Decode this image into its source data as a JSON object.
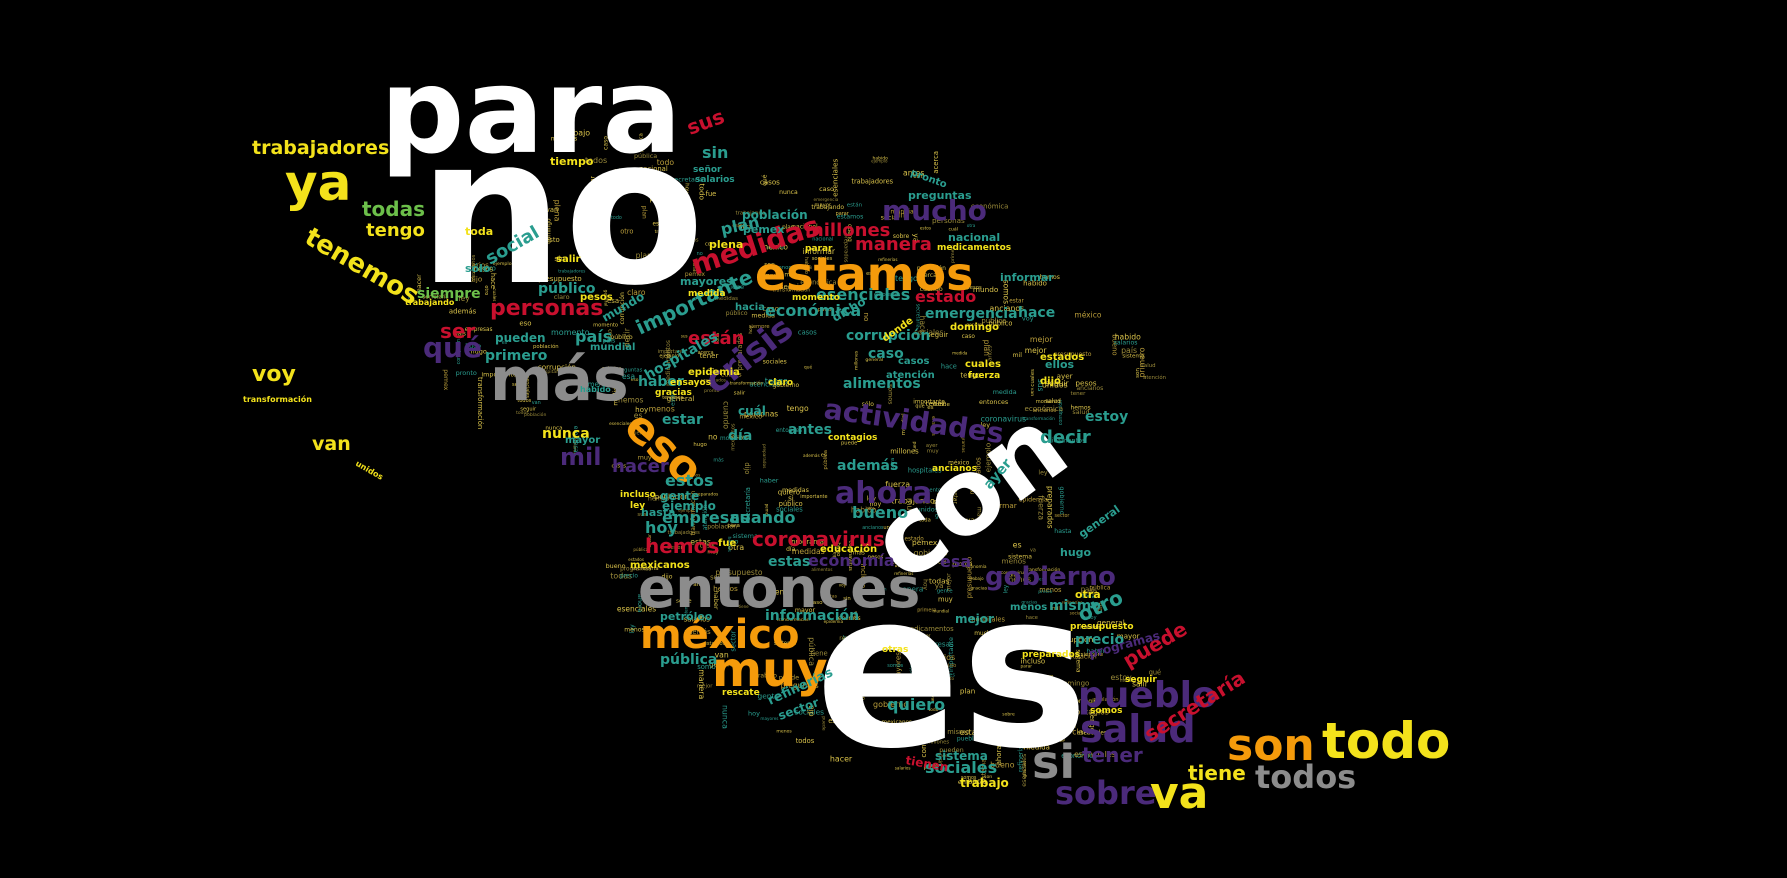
{
  "palette": {
    "background": "#000000",
    "white": "#ffffff",
    "orange": "#f59b0b",
    "yellow": "#f3e21b",
    "gray": "#8c8c8c",
    "purple": "#4b2a7a",
    "red": "#c8102e",
    "teal": "#2a9d8f",
    "green": "#6cbf4a",
    "filler": "#d8c14a"
  },
  "words": [
    "para",
    "no",
    "es",
    "con",
    "entonces",
    "más",
    "estamos",
    "méxico",
    "muy",
    "eso",
    "todo",
    "son",
    "salud",
    "pueblo",
    "sobre",
    "va",
    "si",
    "todos",
    "qué",
    "crisis",
    "medidas",
    "actividades",
    "mucho",
    "ahora",
    "gobierno",
    "personas",
    "tenemos",
    "ya",
    "trabajadores",
    "todas",
    "tengo",
    "voy",
    "van",
    "transformación",
    "unidos",
    "secretaría",
    "tiene",
    "tener",
    "puede",
    "coronavirus",
    "hemos",
    "economía",
    "estas",
    "esa",
    "mil",
    "hacer",
    "importante",
    "están",
    "millones",
    "manera",
    "estado",
    "esenciales",
    "económica",
    "emergencia",
    "corrupción",
    "alimentos",
    "decir",
    "hace",
    "país",
    "primero",
    "ser",
    "sus",
    "sin",
    "plan",
    "población",
    "pemex",
    "nacional",
    "preguntas",
    "pronto",
    "tiempo",
    "señor",
    "salarios",
    "social",
    "público",
    "mayores",
    "siempre",
    "trabajando",
    "sólo",
    "pueden",
    "mundial",
    "hospitales",
    "haber",
    "habido",
    "caso",
    "casos",
    "atención",
    "estoy",
    "ayer",
    "además",
    "antes",
    "día",
    "nunca",
    "estar",
    "mayor",
    "estos",
    "ejemplo",
    "gente",
    "empresas",
    "cuando",
    "bueno",
    "hoy",
    "hasta",
    "mexicanos",
    "hugo",
    "general",
    "otro",
    "mismo",
    "menos",
    "mejor",
    "precio",
    "programas",
    "seguir",
    "quiero",
    "sistema",
    "sociales",
    "trabajo",
    "tienen",
    "refinerías",
    "sector",
    "información",
    "pública",
    "petróleo",
    "otras",
    "preparados",
    "rescate",
    "somos",
    "ancianos",
    "medicamentos",
    "informar",
    "domingo",
    "fue",
    "educación",
    "donde",
    "dicho",
    "hacia",
    "medida",
    "mundo",
    "gracias",
    "ensayos",
    "epidemia",
    "claro",
    "cuál",
    "otra",
    "presupuesto",
    "cuales",
    "ellos",
    "dijo",
    "estados",
    "incluso",
    "ley",
    "fuerza",
    "toda",
    "salir",
    "pesos",
    "plena",
    "parar",
    "momento",
    "contagios",
    "acerca"
  ]
}
